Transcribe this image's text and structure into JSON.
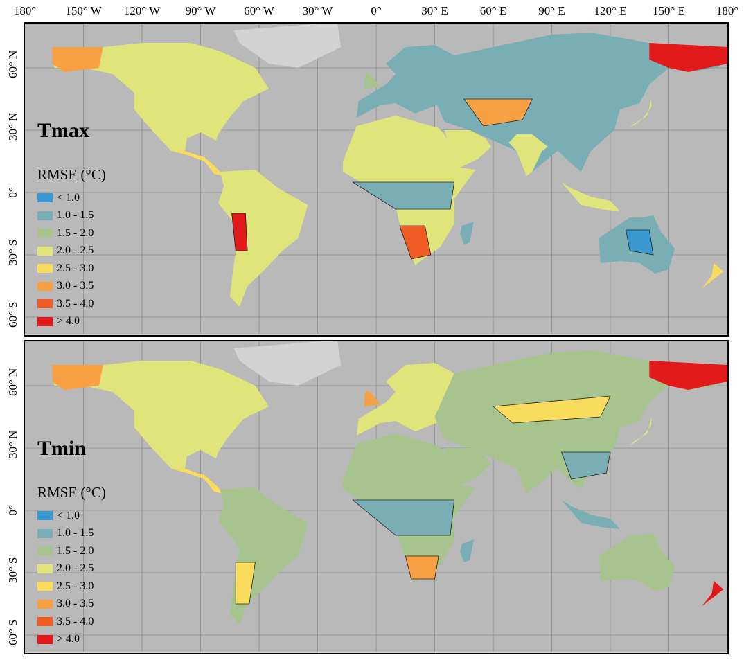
{
  "lon_labels": [
    "180°",
    "150° W",
    "120° W",
    "90° W",
    "60° W",
    "30° W",
    "0°",
    "30° E",
    "60° E",
    "90° E",
    "120° E",
    "150° E",
    "180°"
  ],
  "lat_labels": [
    "60° N",
    "30° N",
    "0°",
    "30° S",
    "60° S"
  ],
  "legend": {
    "title": "RMSE (°C)",
    "items": [
      {
        "label": "< 1.0",
        "color": "#3a98d0"
      },
      {
        "label": "1.0 - 1.5",
        "color": "#79aeb4"
      },
      {
        "label": "1.5 - 2.0",
        "color": "#a8c48e"
      },
      {
        "label": "2.0 - 2.5",
        "color": "#dfe57a"
      },
      {
        "label": "2.5 - 3.0",
        "color": "#f9dc5c"
      },
      {
        "label": "3.0 - 3.5",
        "color": "#f8a144"
      },
      {
        "label": "3.5 - 4.0",
        "color": "#ef5d24"
      },
      {
        "label": "> 4.0",
        "color": "#e31a1c"
      }
    ]
  },
  "panels": [
    {
      "title": "Tmax"
    },
    {
      "title": "Tmin"
    }
  ],
  "colors": {
    "ocean": "#b9b9b9",
    "land_nodata": "#d3d3d3",
    "nodata_white": "#ffffff",
    "grid": "#8c8c8c"
  }
}
